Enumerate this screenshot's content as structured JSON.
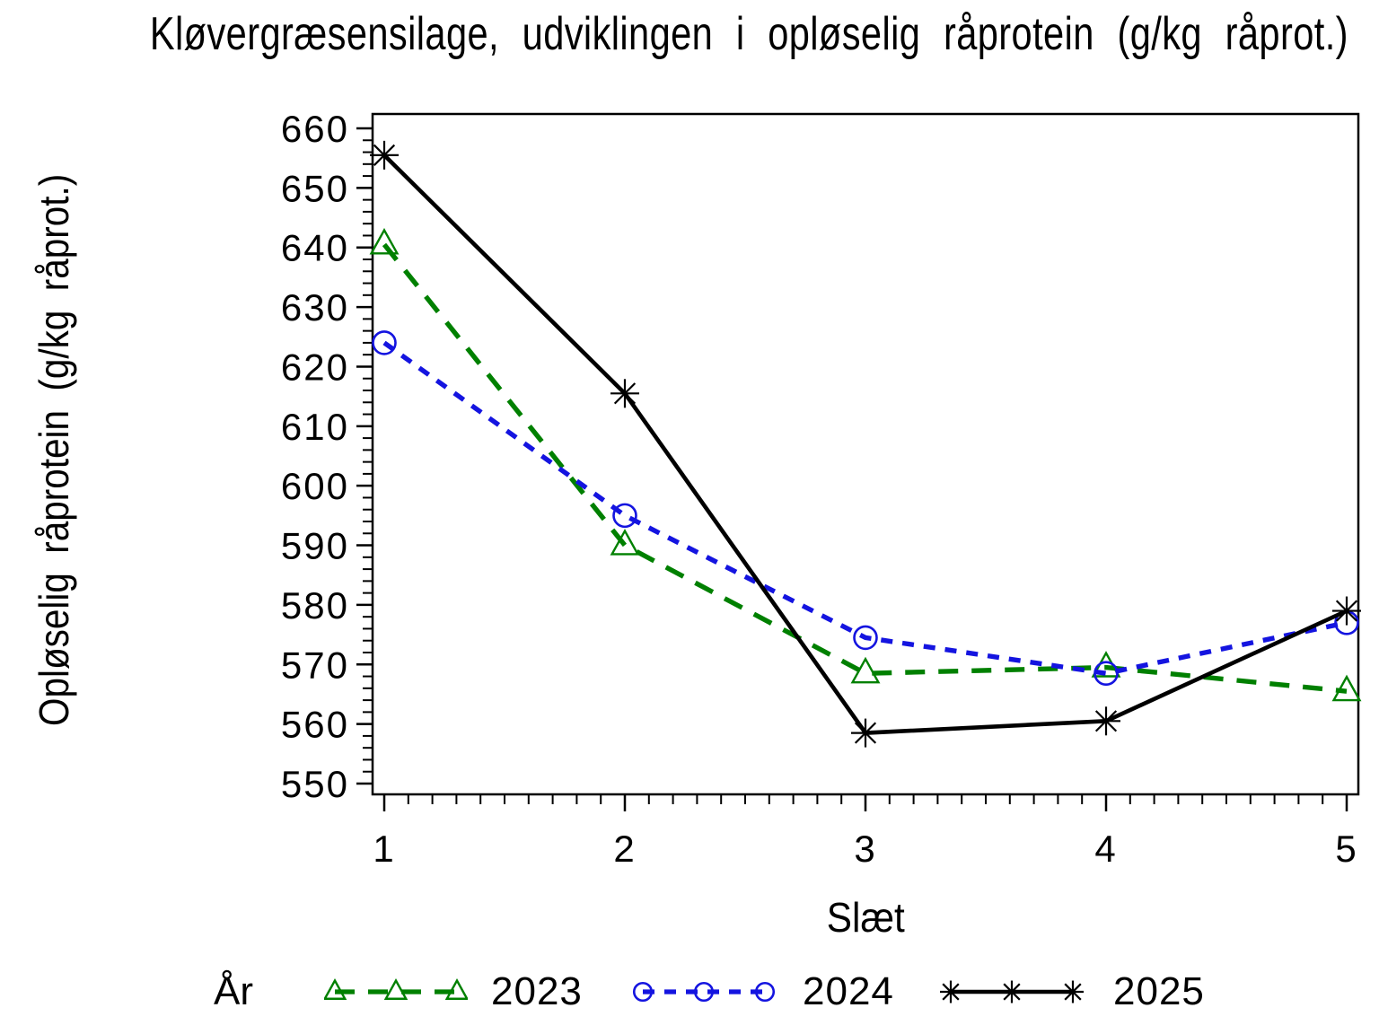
{
  "legend": {
    "title": "År",
    "position": "bottom"
  },
  "chart_data": {
    "type": "line",
    "title": "Kløvergræsensilage, udviklingen i opløselig råprotein (g/kg råprot.)",
    "xlabel": "Slæt",
    "ylabel": "Opløselig råprotein (g/kg råprot.)",
    "x": [
      1,
      2,
      3,
      4,
      5
    ],
    "xticks": [
      1,
      2,
      3,
      4,
      5
    ],
    "yticks": [
      550,
      560,
      570,
      580,
      590,
      600,
      610,
      620,
      630,
      640,
      650,
      660
    ],
    "ylim": [
      548,
      662
    ],
    "xlim": [
      0.95,
      5.05
    ],
    "minor_y_step": 2,
    "minor_x_step": 0.1,
    "grid": "off",
    "frame": "box",
    "series": [
      {
        "name": "2023",
        "color": "#008000",
        "line": "dashed",
        "dash": "22 15",
        "marker": "triangle",
        "values": [
          640.5,
          590,
          568.5,
          569.5,
          565.5
        ]
      },
      {
        "name": "2024",
        "color": "#1414E0",
        "line": "dashed",
        "dash": "13 11",
        "marker": "circle",
        "values": [
          624,
          595,
          574.5,
          568.5,
          577
        ]
      },
      {
        "name": "2025",
        "color": "#000000",
        "line": "solid",
        "dash": "",
        "marker": "asterisk",
        "values": [
          655.5,
          615.5,
          558.5,
          560.5,
          579
        ]
      }
    ]
  }
}
